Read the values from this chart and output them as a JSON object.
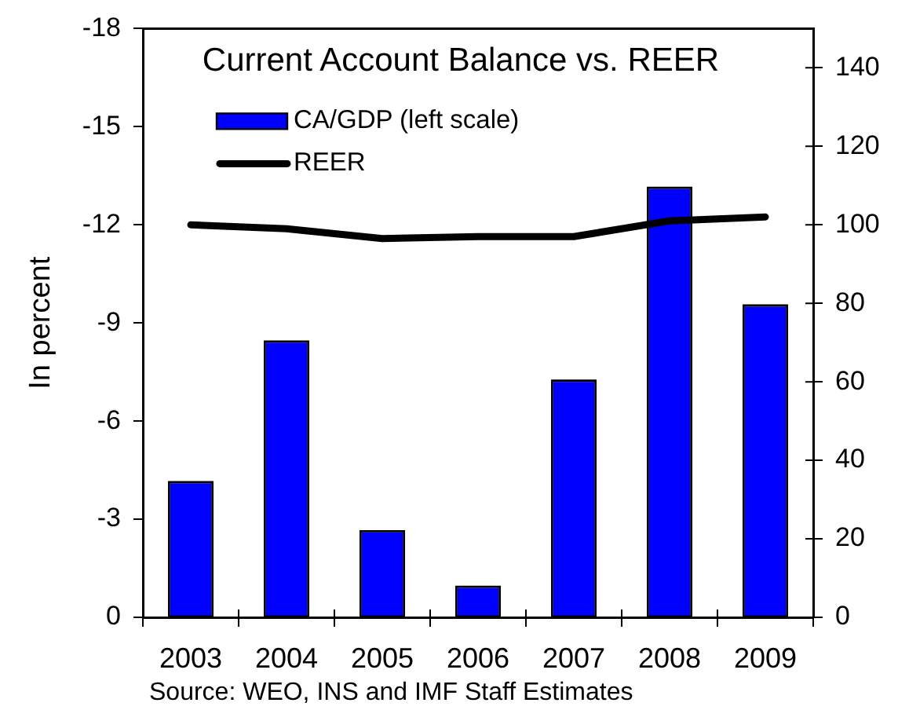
{
  "chart_data": {
    "type": "bar",
    "title": "Current Account Balance vs. REER",
    "ylabel": "In percent",
    "annotations": [
      "Source: WEO, INS and IMF Staff Estimates"
    ],
    "categories": [
      "2003",
      "2004",
      "2005",
      "2006",
      "2007",
      "2008",
      "2009"
    ],
    "series": [
      {
        "name": "CA/GDP (left scale)",
        "color": "#0000ff",
        "values": [
          -4.1,
          -8.4,
          -2.6,
          -0.9,
          -7.2,
          -13.1,
          -9.5
        ]
      },
      {
        "name": "REER",
        "type": "line",
        "axis": "y2",
        "color": "#000000",
        "values": [
          100,
          99,
          96.5,
          97,
          97,
          101,
          102
        ]
      }
    ],
    "ylim": [
      0,
      -18
    ],
    "yticks": [
      0,
      -3,
      -6,
      -9,
      -12,
      -15,
      -18
    ],
    "y2lim": [
      0,
      150
    ],
    "y2ticks": [
      0,
      20,
      40,
      60,
      80,
      100,
      120,
      140
    ],
    "marker": "none",
    "legend": "top left"
  }
}
